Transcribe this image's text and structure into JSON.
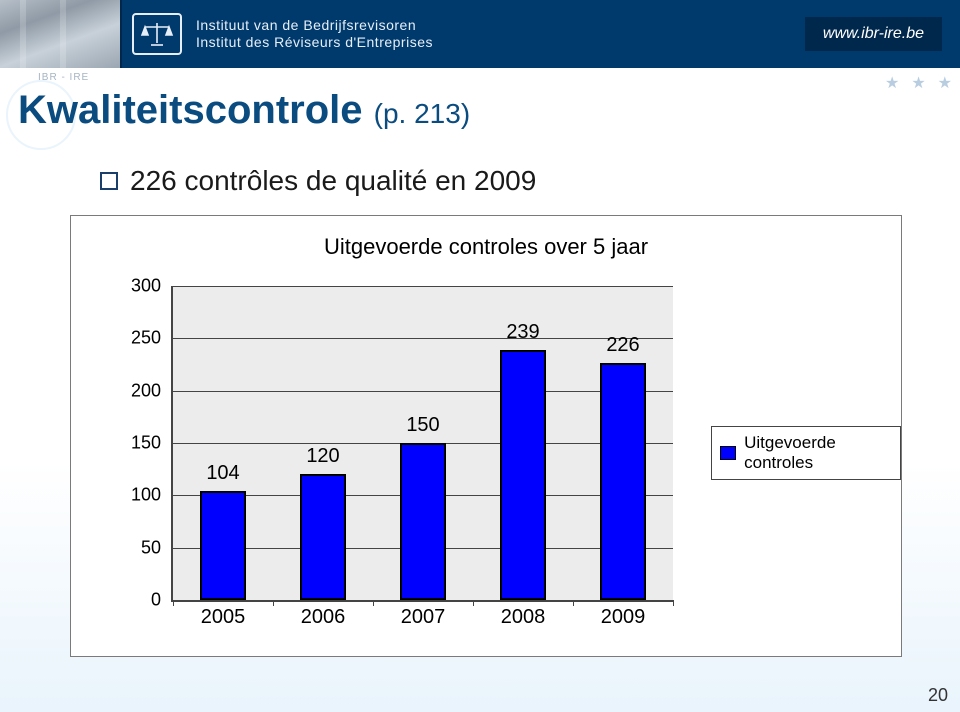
{
  "header": {
    "org_line1": "Instituut van de Bedrijfsrevisoren",
    "org_line2": "Institut des Réviseurs d'Entreprises",
    "url": "www.ibr-ire.be",
    "tag": "IBR - IRE"
  },
  "title": {
    "main": "Kwaliteitscontrole",
    "sub": "(p. 213)"
  },
  "bullet": "226 contrôles de qualité en 2009",
  "chart": {
    "type": "bar",
    "title": "Uitgevoerde controles over 5 jaar",
    "categories": [
      "2005",
      "2006",
      "2007",
      "2008",
      "2009"
    ],
    "values": [
      104,
      120,
      150,
      239,
      226
    ],
    "ymin": 0,
    "ymax": 300,
    "ytick_step": 50,
    "bar_color": "#0000ff",
    "bar_border": "#000000",
    "plot_bg": "#ececec",
    "grid_color": "#444444",
    "legend_label": "Uitgevoerde controles"
  },
  "page_number": "20"
}
